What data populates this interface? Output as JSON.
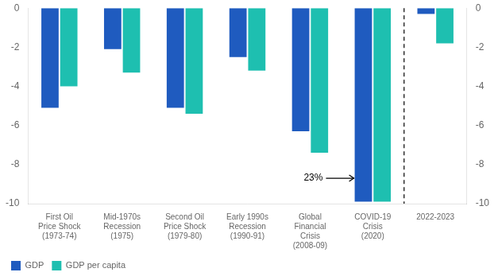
{
  "chart_data": {
    "type": "bar",
    "categories": [
      "First Oil\nPrice Shock\n(1973-74)",
      "Mid-1970s\nRecession\n(1975)",
      "Second Oil\nPrice Shock\n(1979-80)",
      "Early 1990s\nRecession\n(1990-91)",
      "Global\nFinancial\nCrisis\n(2008-09)",
      "COVID-19\nCrisis\n(2020)",
      "2022-2023"
    ],
    "series": [
      {
        "name": "GDP",
        "color": "#1f5bbf",
        "values": [
          -5.1,
          -2.1,
          -5.1,
          -2.5,
          -6.3,
          -9.9,
          -0.3
        ]
      },
      {
        "name": "GDP per capita",
        "color": "#1ebfb0",
        "values": [
          -4.0,
          -3.3,
          -5.4,
          -3.2,
          -7.4,
          -9.9,
          -1.8
        ]
      }
    ],
    "ylim": [
      -10,
      0
    ],
    "yticks": [
      0,
      -2,
      -4,
      -6,
      -8,
      -10
    ],
    "y2lim": [
      -10,
      0
    ],
    "y2ticks": [
      0,
      -2,
      -4,
      -6,
      -8,
      -10
    ],
    "grid": false,
    "legend": "lower left",
    "annotations": [
      {
        "text": "23%",
        "y": -8.7,
        "category": "COVID-19\nCrisis\n(2020)"
      }
    ],
    "dividers": [
      {
        "between": [
          "COVID-19\nCrisis\n(2020)",
          "2022-2023"
        ],
        "line_style": "dashed"
      }
    ]
  }
}
